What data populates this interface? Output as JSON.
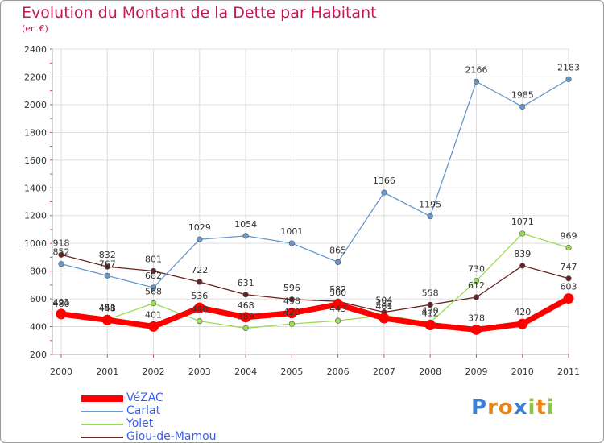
{
  "title": "Evolution du Montant de la Dette par Habitant",
  "subtitle": "(en €)",
  "logo": "Proxiti",
  "colors": {
    "title": "#c2185b",
    "grid": "#dddddd",
    "axis": "#aaaaaa",
    "tick_mark": "#e0405a",
    "legend_text": "#3a5ff0"
  },
  "chart_data": {
    "type": "line",
    "title": "Evolution du Montant de la Dette par Habitant",
    "ylabel": "(en €)",
    "xlabel": "",
    "ylim": [
      200,
      2400
    ],
    "yticks": [
      200,
      400,
      600,
      800,
      1000,
      1200,
      1400,
      1600,
      1800,
      2000,
      2200,
      2400
    ],
    "grid": true,
    "legend_position": "bottom-left",
    "categories": [
      "2000",
      "2001",
      "2002",
      "2003",
      "2004",
      "2005",
      "2006",
      "2007",
      "2008",
      "2009",
      "2010",
      "2011"
    ],
    "series": [
      {
        "name": "VéZAC",
        "color": "#ff0000",
        "values": [
          491,
          448,
          401,
          536,
          468,
          498,
          560,
          461,
          412,
          378,
          420,
          603
        ]
      },
      {
        "name": "Carlat",
        "color": "#6699cc",
        "values": [
          852,
          767,
          682,
          1029,
          1054,
          1001,
          865,
          1366,
          1195,
          2166,
          1985,
          2183
        ]
      },
      {
        "name": "Yolet",
        "color": "#99dd55",
        "values": [
          480,
          451,
          568,
          440,
          389,
          420,
          443,
          482,
          430,
          730,
          1071,
          969
        ]
      },
      {
        "name": "Giou-de-Mamou",
        "color": "#6b2222",
        "values": [
          918,
          832,
          801,
          722,
          631,
          596,
          582,
          504,
          558,
          612,
          839,
          747
        ]
      }
    ]
  }
}
